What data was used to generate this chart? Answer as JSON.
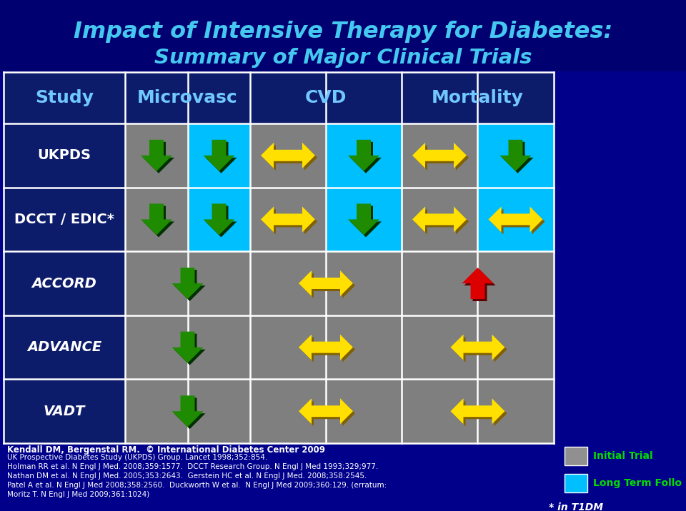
{
  "title_line1": "Impact of Intensive Therapy for Diabetes:",
  "title_line2": "Summary of Major Clinical Trials",
  "bg_color": "#00008B",
  "dark_navy": "#0D1B6B",
  "gray_cell": "#7F7F7F",
  "cyan_cell": "#00BFFF",
  "headers": [
    "Study",
    "Microvasc",
    "CVD",
    "Mortality"
  ],
  "rows": [
    "UKPDS",
    "DCCT / EDIC*",
    "ACCORD",
    "ADVANCE",
    "VADT"
  ],
  "row_italic": [
    false,
    false,
    true,
    true,
    true
  ],
  "footnote_line1": "Kendall DM, Bergenstal RM.  © International Diabetes Center 2009",
  "footnote_lines": [
    "UK Prospective Diabetes Study (UKPDS) Group. Lancet 1998;352:854.",
    "Holman RR et al. N Engl J Med. 2008;359:1577.  DCCT Research Group. N Engl J Med 1993;329;977.",
    "Nathan DM et al. N Engl J Med. 2005;353:2643.  Gerstein HC et al. N Engl J Med. 2008;358:2545.",
    "Patel A et al. N Engl J Med 2008;358:2560.  Duckworth W et al.  N Engl J Med 2009;360:129. (erratum:",
    "Moritz T. N Engl J Med 2009;361:1024)"
  ],
  "legend_label1": "Initial Trial",
  "legend_label2": "Long Term Follo",
  "legend_label3": "* in T1DM",
  "green_arrow": "#1E8B00",
  "yellow_arrow": "#FFE000",
  "red_arrow": "#DD0000"
}
